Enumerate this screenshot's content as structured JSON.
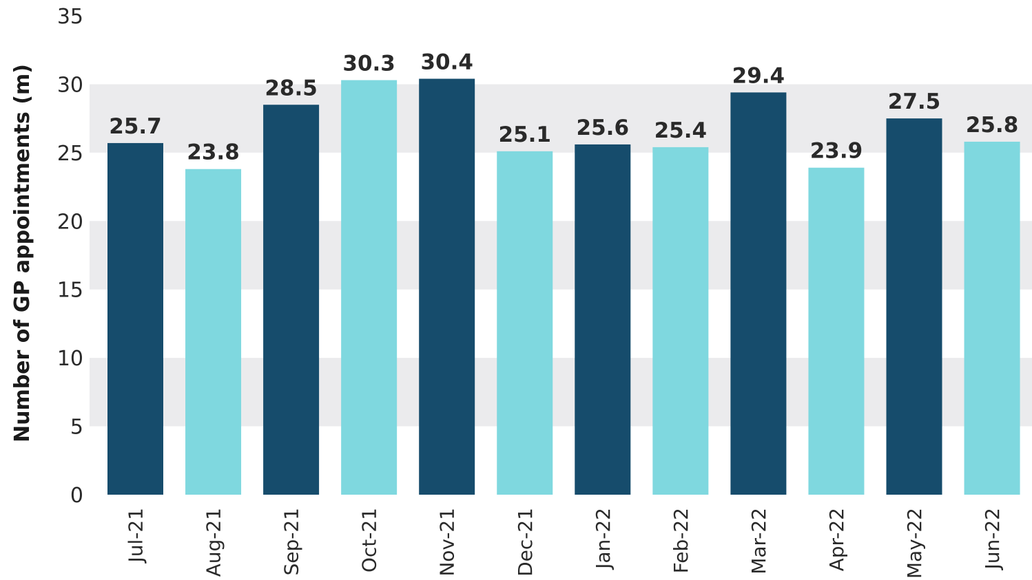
{
  "chart_data": {
    "type": "bar",
    "title": "",
    "xlabel": "",
    "ylabel": "Number of GP appointments (m)",
    "ylim": [
      0,
      35
    ],
    "yticks": [
      0,
      5,
      10,
      15,
      20,
      25,
      30,
      35
    ],
    "grid": "alternating horizontal bands",
    "legend": "none",
    "categories": [
      "Jul-21",
      "Aug-21",
      "Sep-21",
      "Oct-21",
      "Nov-21",
      "Dec-21",
      "Jan-22",
      "Feb-22",
      "Mar-22",
      "Apr-22",
      "May-22",
      "Jun-22"
    ],
    "values": [
      25.7,
      23.8,
      28.5,
      30.3,
      30.4,
      25.1,
      25.6,
      25.4,
      29.4,
      23.9,
      27.5,
      25.8
    ],
    "value_labels": [
      "25.7",
      "23.8",
      "28.5",
      "30.3",
      "30.4",
      "25.1",
      "25.6",
      "25.4",
      "29.4",
      "23.9",
      "27.5",
      "25.8"
    ],
    "bar_colors": [
      "#164c6c",
      "#7fd8df",
      "#164c6c",
      "#7fd8df",
      "#164c6c",
      "#7fd8df",
      "#164c6c",
      "#7fd8df",
      "#164c6c",
      "#7fd8df",
      "#164c6c",
      "#7fd8df"
    ],
    "band_color": "#ebebed"
  }
}
